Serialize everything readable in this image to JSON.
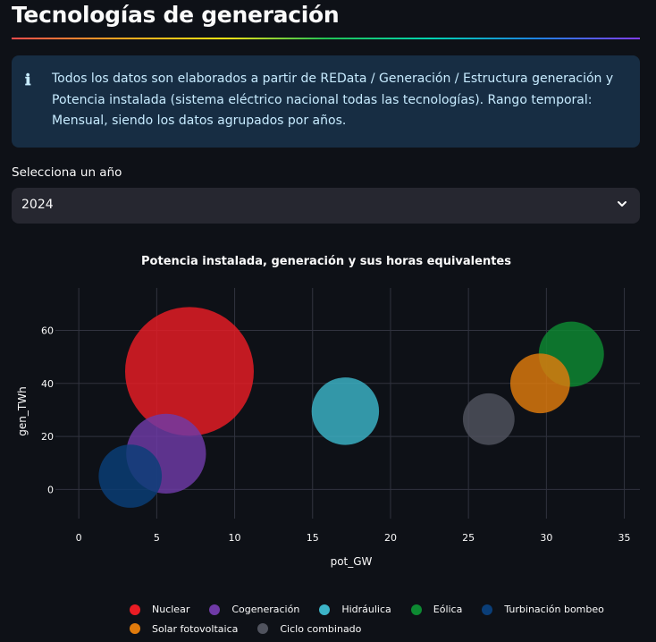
{
  "page": {
    "title": "Tecnologías de generación"
  },
  "info": {
    "icon": "info-icon",
    "text": "Todos los datos son elaborados a partir de REData / Generación / Estructura generación y Potencia instalada (sistema eléctrico nacional todas las tecnologías). Rango temporal: Mensual, siendo los datos agrupados por años."
  },
  "year_select": {
    "label": "Selecciona un año",
    "value": "2024",
    "icon": "chevron-down-icon"
  },
  "chart_data": {
    "type": "scatter",
    "title": "Potencia instalada, generación y sus horas equivalentes",
    "xlabel": "pot_GW",
    "ylabel": "gen_TWh",
    "xlim": [
      -1.5,
      36
    ],
    "ylim": [
      -11,
      76
    ],
    "xticks": [
      0,
      5,
      10,
      15,
      20,
      25,
      30,
      35
    ],
    "yticks": [
      0,
      20,
      40,
      60
    ],
    "grid": true,
    "legend_position": "bottom",
    "size_encoding": "horas equivalentes",
    "series": [
      {
        "name": "Nuclear",
        "color": "#ea1c24",
        "x": 7.1,
        "y": 44.5,
        "size": 6270
      },
      {
        "name": "Cogeneración",
        "color": "#6f3aa7",
        "x": 5.6,
        "y": 13.5,
        "size": 2410
      },
      {
        "name": "Hidráulica",
        "color": "#3cb4c8",
        "x": 17.1,
        "y": 29.5,
        "size": 1720
      },
      {
        "name": "Eólica",
        "color": "#0d8a32",
        "x": 31.6,
        "y": 51.0,
        "size": 1610
      },
      {
        "name": "Turbinación bombeo",
        "color": "#0a3e78",
        "x": 3.3,
        "y": 5.0,
        "size": 1510
      },
      {
        "name": "Solar fotovoltaica",
        "color": "#e07b0c",
        "x": 29.6,
        "y": 40.0,
        "size": 1350
      },
      {
        "name": "Ciclo combinado",
        "color": "#50535e",
        "x": 26.3,
        "y": 26.5,
        "size": 1010
      }
    ]
  }
}
